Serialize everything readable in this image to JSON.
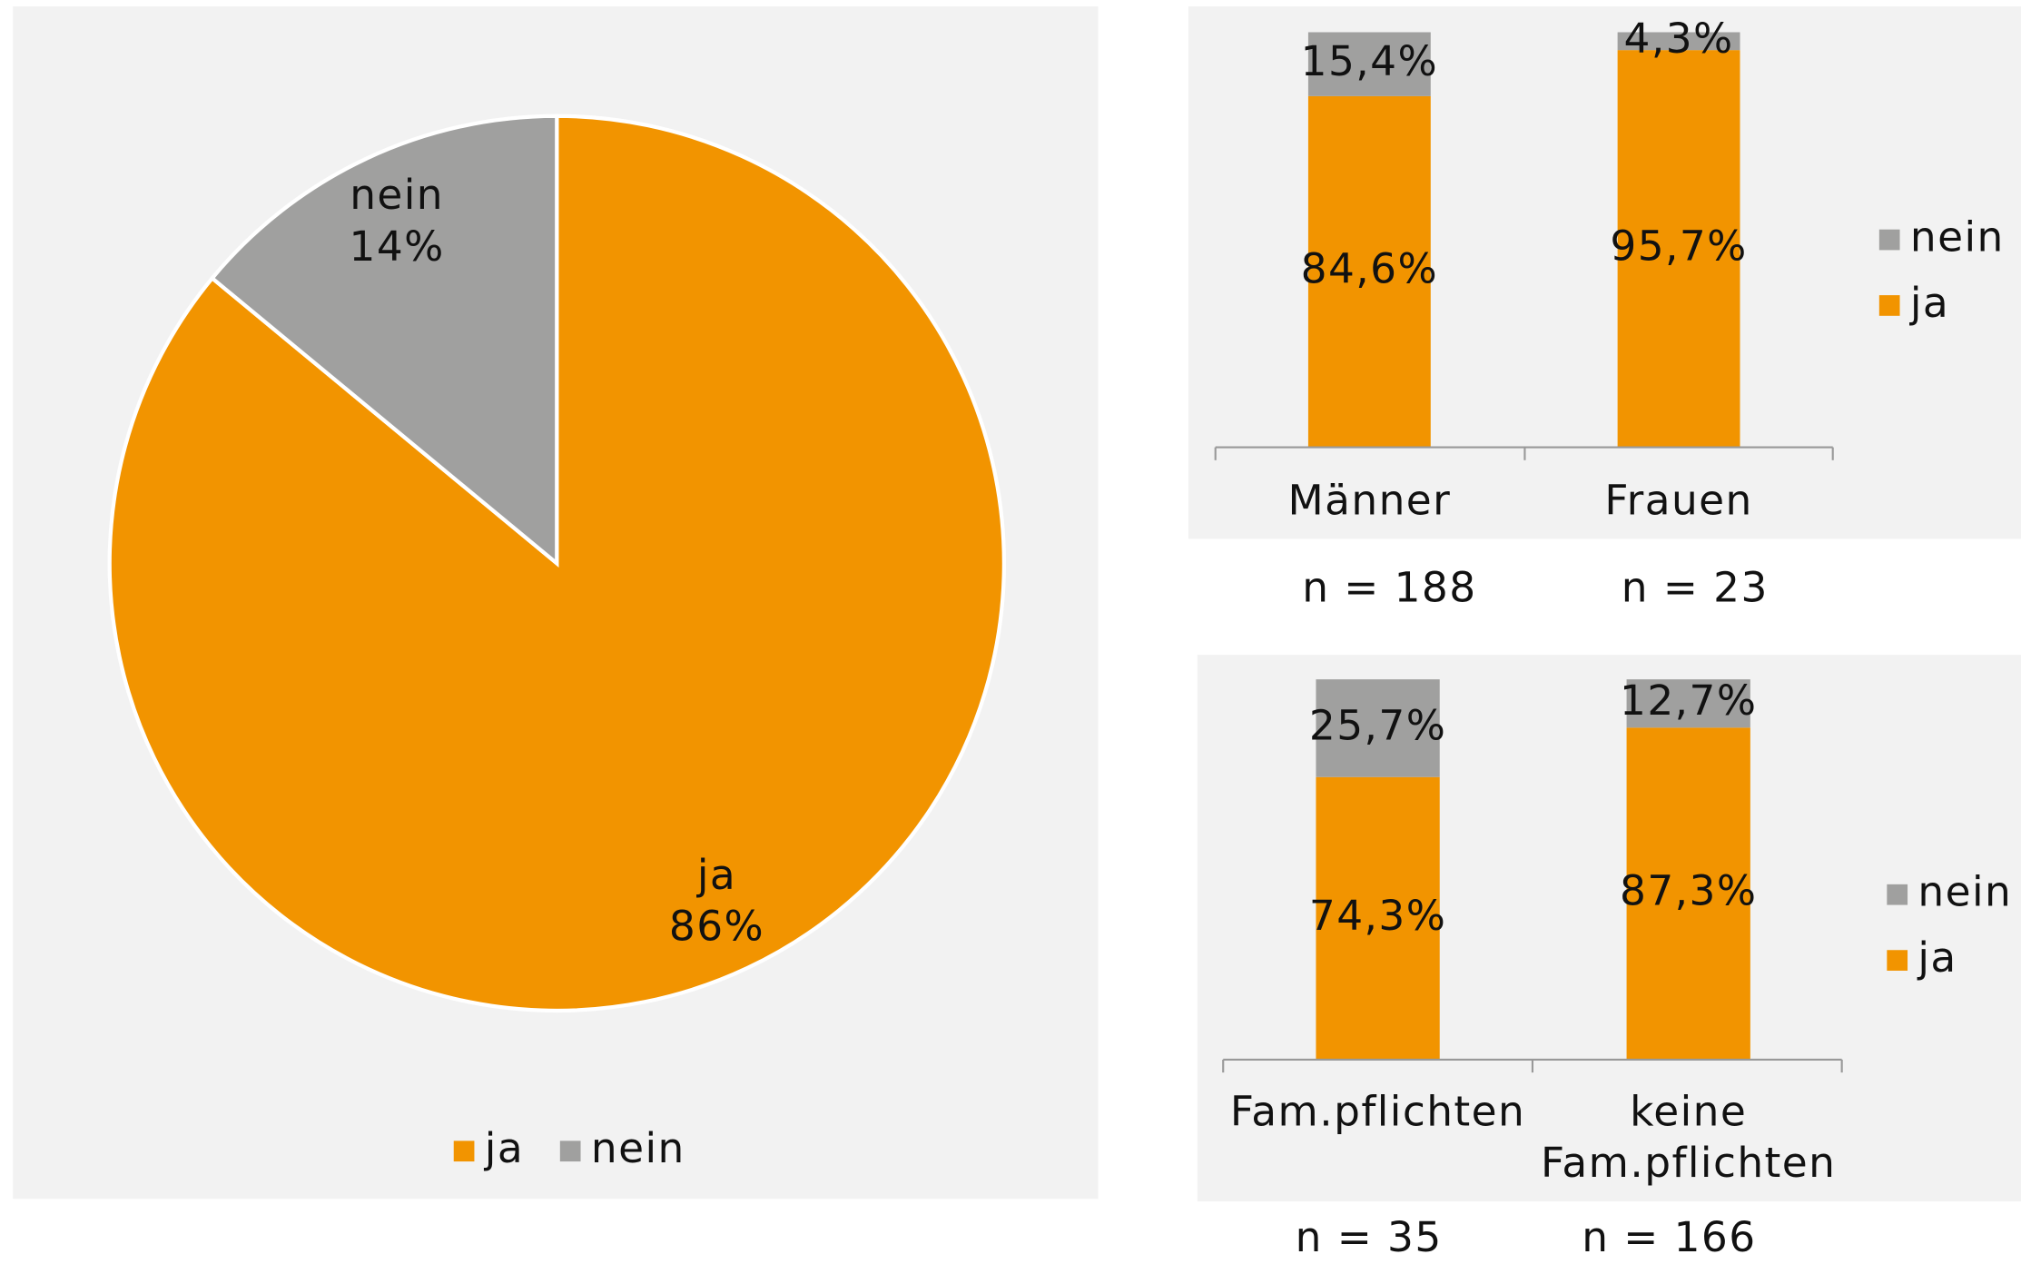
{
  "chart_data": [
    {
      "type": "pie",
      "series": [
        {
          "name": "ja",
          "color": "#f29400",
          "value": 86,
          "value_label": "86%"
        },
        {
          "name": "nein",
          "color": "#a0a09f",
          "value": 14,
          "value_label": "14%"
        }
      ]
    },
    {
      "type": "stacked_bar",
      "categories": [
        "Männer",
        "Frauen"
      ],
      "series": [
        {
          "name": "ja",
          "color": "#f29400",
          "values": [
            84.6,
            95.7
          ],
          "value_labels": [
            "84,6%",
            "95,7%"
          ]
        },
        {
          "name": "nein",
          "color": "#a0a09f",
          "values": [
            15.4,
            4.3
          ],
          "value_labels": [
            "15,4%",
            "4,3%"
          ]
        }
      ],
      "ylim": [
        0,
        100
      ],
      "annotations": [
        "n = 188",
        "n = 23"
      ]
    },
    {
      "type": "stacked_bar",
      "categories": [
        "Fam.pflichten",
        "keine Fam.pflichten"
      ],
      "series": [
        {
          "name": "ja",
          "color": "#f29400",
          "values": [
            74.3,
            87.3
          ],
          "value_labels": [
            "74,3%",
            "87,3%"
          ]
        },
        {
          "name": "nein",
          "color": "#a0a09f",
          "values": [
            25.7,
            12.7
          ],
          "value_labels": [
            "25,7%",
            "12,7%"
          ]
        }
      ],
      "ylim": [
        0,
        100
      ],
      "annotations": [
        "n = 35",
        "n = 166"
      ]
    }
  ]
}
